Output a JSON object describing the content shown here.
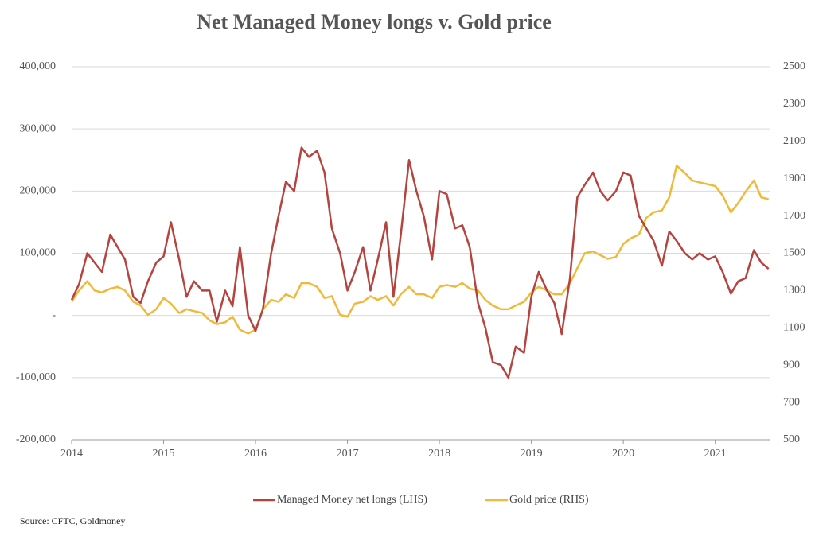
{
  "chart_data": {
    "type": "line",
    "title": "Net Managed Money longs v. Gold price",
    "source": "Source: CFTC, Goldmoney",
    "legend": "bottom",
    "grid": true,
    "xlim": [
      2014,
      2021.6
    ],
    "xticks": [
      2014,
      2015,
      2016,
      2017,
      2018,
      2019,
      2020,
      2021
    ],
    "ylim": [
      -200000,
      400000
    ],
    "yticks": [
      {
        "value": -200000,
        "label": "-200,000"
      },
      {
        "value": -100000,
        "label": "-100,000"
      },
      {
        "value": 0,
        "label": "-"
      },
      {
        "value": 100000,
        "label": "100,000"
      },
      {
        "value": 200000,
        "label": "200,000"
      },
      {
        "value": 300000,
        "label": "300,000"
      },
      {
        "value": 400000,
        "label": "400,000"
      }
    ],
    "y2lim": [
      500,
      2500
    ],
    "y2ticks": [
      500,
      700,
      900,
      1100,
      1300,
      1500,
      1700,
      1900,
      2100,
      2300,
      2500
    ],
    "x": [
      2014.0,
      2014.08,
      2014.17,
      2014.25,
      2014.33,
      2014.42,
      2014.5,
      2014.58,
      2014.67,
      2014.75,
      2014.83,
      2014.92,
      2015.0,
      2015.08,
      2015.17,
      2015.25,
      2015.33,
      2015.42,
      2015.5,
      2015.58,
      2015.67,
      2015.75,
      2015.83,
      2015.92,
      2016.0,
      2016.08,
      2016.17,
      2016.25,
      2016.33,
      2016.42,
      2016.5,
      2016.58,
      2016.67,
      2016.75,
      2016.83,
      2016.92,
      2017.0,
      2017.08,
      2017.17,
      2017.25,
      2017.33,
      2017.42,
      2017.5,
      2017.58,
      2017.67,
      2017.75,
      2017.83,
      2017.92,
      2018.0,
      2018.08,
      2018.17,
      2018.25,
      2018.33,
      2018.42,
      2018.5,
      2018.58,
      2018.67,
      2018.75,
      2018.83,
      2018.92,
      2019.0,
      2019.08,
      2019.17,
      2019.25,
      2019.33,
      2019.42,
      2019.5,
      2019.58,
      2019.67,
      2019.75,
      2019.83,
      2019.92,
      2020.0,
      2020.08,
      2020.17,
      2020.25,
      2020.33,
      2020.42,
      2020.5,
      2020.58,
      2020.67,
      2020.75,
      2020.83,
      2020.92,
      2021.0,
      2021.08,
      2021.17,
      2021.25,
      2021.33,
      2021.42,
      2021.5,
      2021.58
    ],
    "series": [
      {
        "name": "Managed Money net longs (LHS)",
        "color": "#b5443f",
        "axis": "y",
        "values": [
          25000,
          50000,
          100000,
          85000,
          70000,
          130000,
          110000,
          90000,
          30000,
          20000,
          55000,
          85000,
          95000,
          150000,
          90000,
          30000,
          55000,
          40000,
          40000,
          -10000,
          40000,
          15000,
          110000,
          0,
          -25000,
          10000,
          100000,
          160000,
          215000,
          200000,
          270000,
          255000,
          265000,
          230000,
          140000,
          100000,
          40000,
          70000,
          110000,
          40000,
          90000,
          150000,
          30000,
          130000,
          250000,
          200000,
          160000,
          90000,
          200000,
          195000,
          140000,
          145000,
          110000,
          20000,
          -20000,
          -75000,
          -80000,
          -100000,
          -50000,
          -60000,
          30000,
          70000,
          40000,
          20000,
          -30000,
          60000,
          190000,
          210000,
          230000,
          200000,
          185000,
          200000,
          230000,
          225000,
          160000,
          140000,
          120000,
          80000,
          135000,
          120000,
          100000,
          90000,
          100000,
          90000,
          95000,
          70000,
          35000,
          55000,
          60000,
          105000,
          85000,
          75000
        ]
      },
      {
        "name": "Gold price (RHS)",
        "color": "#f0b93a",
        "axis": "y2",
        "values": [
          1240,
          1300,
          1350,
          1300,
          1290,
          1310,
          1320,
          1300,
          1240,
          1220,
          1170,
          1200,
          1260,
          1230,
          1180,
          1200,
          1190,
          1180,
          1140,
          1120,
          1130,
          1160,
          1090,
          1070,
          1090,
          1200,
          1250,
          1240,
          1280,
          1260,
          1340,
          1340,
          1320,
          1260,
          1270,
          1170,
          1160,
          1230,
          1240,
          1270,
          1250,
          1270,
          1220,
          1280,
          1320,
          1280,
          1280,
          1260,
          1320,
          1330,
          1320,
          1340,
          1310,
          1300,
          1250,
          1220,
          1200,
          1200,
          1220,
          1240,
          1290,
          1320,
          1300,
          1280,
          1280,
          1340,
          1420,
          1500,
          1510,
          1490,
          1470,
          1480,
          1550,
          1580,
          1600,
          1690,
          1720,
          1730,
          1800,
          1970,
          1930,
          1890,
          1880,
          1870,
          1860,
          1810,
          1720,
          1770,
          1830,
          1890,
          1800,
          1790
        ]
      }
    ]
  }
}
